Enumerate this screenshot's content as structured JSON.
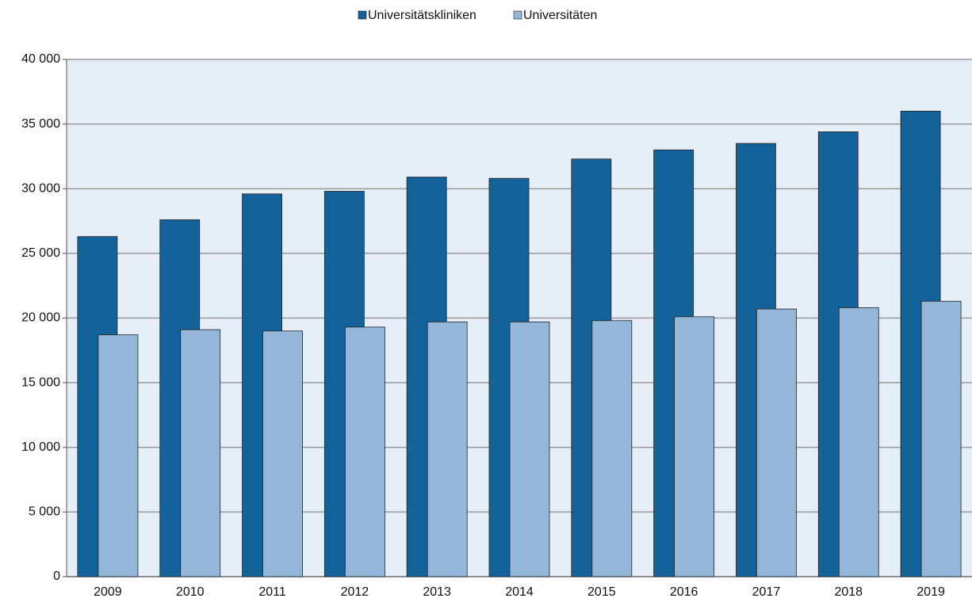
{
  "chart_data": {
    "type": "bar",
    "categories": [
      "2009",
      "2010",
      "2011",
      "2012",
      "2013",
      "2014",
      "2015",
      "2016",
      "2017",
      "2018",
      "2019"
    ],
    "series": [
      {
        "name": "Universitätskliniken",
        "color": "#14629a",
        "values": [
          26300,
          27600,
          29600,
          29800,
          30900,
          30800,
          32300,
          33000,
          33500,
          34400,
          36000
        ]
      },
      {
        "name": "Universitäten",
        "color": "#94b6d9",
        "values": [
          18700,
          19100,
          19000,
          19300,
          19700,
          19700,
          19800,
          20100,
          20700,
          20800,
          21300
        ]
      }
    ],
    "ylim": [
      0,
      40000
    ],
    "yticks": [
      0,
      {
        "value": 5000,
        "label": "5 000"
      },
      {
        "value": 10000,
        "label": "10 000"
      },
      {
        "value": 15000,
        "label": "15 000"
      },
      {
        "value": 20000,
        "label": "20 000"
      },
      {
        "value": 25000,
        "label": "25 000"
      },
      {
        "value": 30000,
        "label": "30 000"
      },
      {
        "value": 35000,
        "label": "35 000"
      },
      {
        "value": 40000,
        "label": "40 000"
      }
    ],
    "grid": true,
    "legend": "top"
  }
}
